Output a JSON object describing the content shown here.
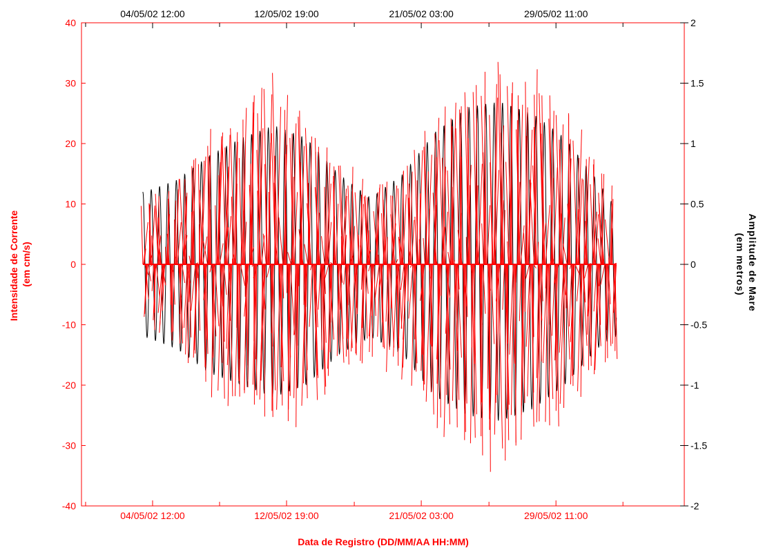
{
  "colors": {
    "current": "#ff0000",
    "tide": "#000000",
    "background": "#ffffff"
  },
  "chart_data": {
    "type": "line",
    "xlabel": "Data de Registro (DD/MM/AA HH:MM)",
    "ylabel_left_line1": "Intensidade de Corrente",
    "ylabel_left_line2": "(em cm/s)",
    "ylabel_right_line1": "Amplitude de Mare",
    "ylabel_right_line2": "(em metros)",
    "x_tick_labels": [
      "04/05/02 12:00",
      "12/05/02 19:00",
      "21/05/02 03:00",
      "29/05/02 11:00"
    ],
    "x_tick_days": [
      4.5,
      12.79,
      21.125,
      29.46
    ],
    "x_range_days": [
      0.1,
      37.4
    ],
    "x_data_range_days": [
      3.9,
      33.2
    ],
    "ylim_left": [
      -40,
      40
    ],
    "yticks_left": [
      -40,
      -30,
      -20,
      -10,
      0,
      10,
      20,
      30,
      40
    ],
    "ylim_right": [
      -2,
      2
    ],
    "yticks_right": [
      -2,
      -1.5,
      -1,
      -0.5,
      0,
      0.5,
      1,
      1.5,
      2
    ],
    "yticks_right_labels": [
      "-2",
      "-1.5",
      "-1",
      "-0.5",
      "0",
      "0.5",
      "1",
      "1.5",
      "2"
    ],
    "grid": false,
    "series": [
      {
        "role": "current_vectors",
        "axis": "left",
        "color": "#ff0000",
        "description_values": "stick vectors from zero line; semi-diurnal oscillation with spring-neap envelope",
        "envelope_days": [
          4,
          6,
          8,
          10,
          12,
          14,
          16,
          18,
          20,
          22,
          24,
          26,
          28,
          30,
          32,
          33
        ],
        "envelope_max_cm_s": [
          10,
          14,
          22,
          26,
          30,
          24,
          16,
          13,
          16,
          24,
          28,
          34,
          30,
          28,
          16,
          12
        ],
        "envelope_min_cm_s": [
          -8,
          -14,
          -20,
          -24,
          -27,
          -24,
          -18,
          -15,
          -18,
          -26,
          -30,
          -33,
          -28,
          -24,
          -18,
          -15
        ]
      },
      {
        "role": "tide_amplitude",
        "axis": "right",
        "color": "#000000",
        "envelope_days": [
          4,
          6,
          8,
          10,
          12,
          14,
          16,
          18,
          20,
          22,
          24,
          26,
          28,
          30,
          32,
          33
        ],
        "envelope_max_m": [
          0.6,
          0.7,
          0.9,
          1.05,
          1.15,
          1.05,
          0.75,
          0.55,
          0.75,
          1.1,
          1.3,
          1.35,
          1.25,
          1.05,
          0.7,
          0.5
        ],
        "envelope_min_m": [
          -0.6,
          -0.7,
          -0.9,
          -1.0,
          -1.1,
          -1.0,
          -0.75,
          -0.6,
          -0.75,
          -1.1,
          -1.25,
          -1.3,
          -1.2,
          -1.0,
          -0.7,
          -0.6
        ]
      }
    ]
  }
}
